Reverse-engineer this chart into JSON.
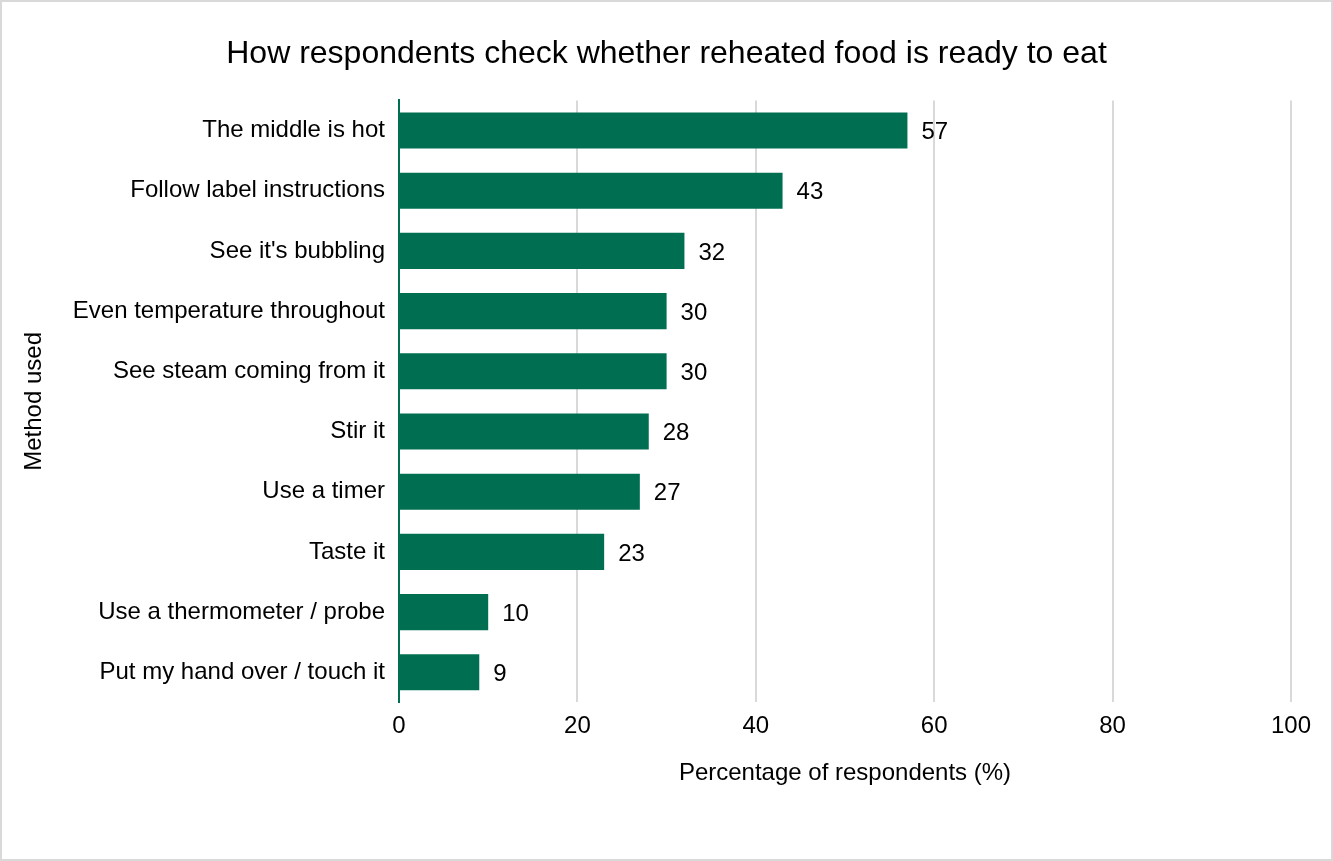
{
  "chart_data": {
    "type": "bar",
    "orientation": "horizontal",
    "title": "How respondents check whether reheated food is ready to eat",
    "xlabel": "Percentage of respondents (%)",
    "ylabel": "Method used",
    "categories": [
      "The middle is hot",
      "Follow label instructions",
      "See it's bubbling",
      "Even temperature throughout",
      "See steam coming from it",
      "Stir it",
      "Use a timer",
      "Taste it",
      "Use a thermometer / probe",
      "Put my hand over / touch it"
    ],
    "values": [
      57,
      43,
      32,
      30,
      30,
      28,
      27,
      23,
      10,
      9
    ],
    "color": "#006f51",
    "xlim": [
      0,
      100
    ],
    "xticks": [
      0,
      20,
      40,
      60,
      80,
      100
    ],
    "grid": "x",
    "data_labels": true
  }
}
